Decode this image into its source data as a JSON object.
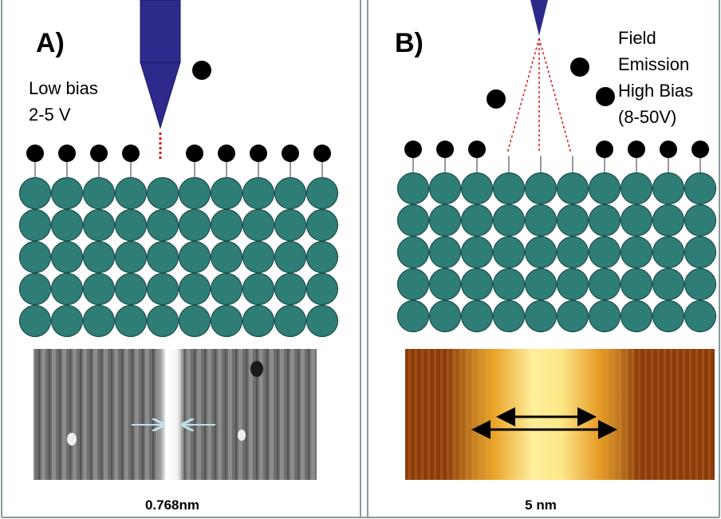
{
  "panel_a": {
    "label": "A)",
    "bias_lines": [
      "Low bias",
      "2-5 V"
    ],
    "caption": "0.768nm"
  },
  "panel_b": {
    "label": "B)",
    "bias_lines": [
      "Field",
      "Emission",
      "High Bias",
      "(8-50V)"
    ],
    "caption": "5 nm"
  }
}
